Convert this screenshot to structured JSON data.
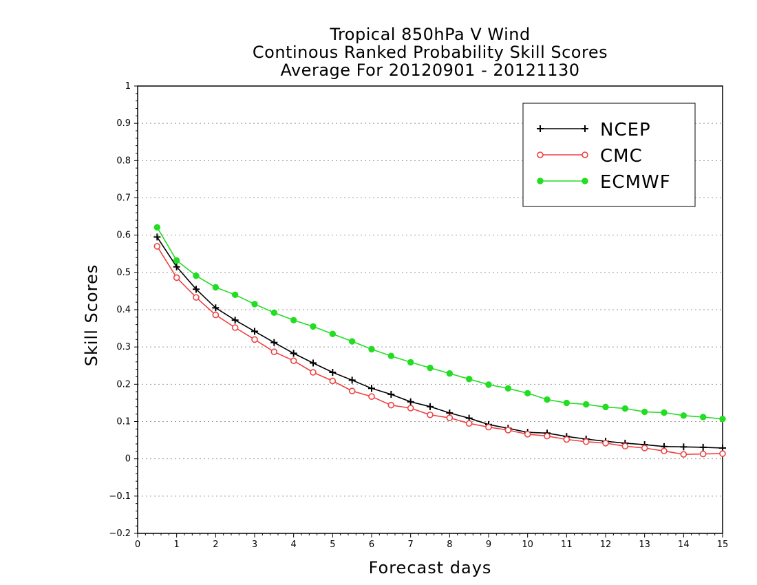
{
  "chart_data": {
    "type": "line",
    "title_lines": [
      "Tropical 850hPa V Wind",
      "Continous Ranked Probability Skill Scores",
      "Average For 20120901 - 20121130"
    ],
    "xlabel": "Forecast days",
    "ylabel": "Skill Scores",
    "xlim": [
      0,
      15
    ],
    "ylim": [
      -0.2,
      1
    ],
    "x_ticks": [
      "0",
      "1",
      "2",
      "3",
      "4",
      "5",
      "6",
      "7",
      "8",
      "9",
      "10",
      "11",
      "12",
      "13",
      "14",
      "15"
    ],
    "y_ticks": [
      "−0.2",
      "−0.1",
      "0",
      "0.1",
      "0.2",
      "0.3",
      "0.4",
      "0.5",
      "0.6",
      "0.7",
      "0.8",
      "0.9",
      "1"
    ],
    "grid": "horizontal dotted",
    "legend_position": "top-right",
    "x": [
      0.5,
      1.0,
      1.5,
      2.0,
      2.5,
      3.0,
      3.5,
      4.0,
      4.5,
      5.0,
      5.5,
      6.0,
      6.5,
      7.0,
      7.5,
      8.0,
      8.5,
      9.0,
      9.5,
      10.0,
      10.5,
      11.0,
      11.5,
      12.0,
      12.5,
      13.0,
      13.5,
      14.0,
      14.5,
      15.0
    ],
    "series": [
      {
        "name": "NCEP",
        "color": "#000000",
        "marker": "plus",
        "values": [
          0.595,
          0.515,
          0.455,
          0.405,
          0.372,
          0.342,
          0.312,
          0.283,
          0.257,
          0.232,
          0.211,
          0.189,
          0.173,
          0.153,
          0.14,
          0.123,
          0.109,
          0.092,
          0.082,
          0.071,
          0.069,
          0.06,
          0.053,
          0.047,
          0.042,
          0.038,
          0.033,
          0.032,
          0.031,
          0.029
        ]
      },
      {
        "name": "CMC",
        "color": "#f04040",
        "marker": "open-circle",
        "values": [
          0.57,
          0.486,
          0.433,
          0.386,
          0.352,
          0.32,
          0.287,
          0.263,
          0.232,
          0.209,
          0.182,
          0.167,
          0.144,
          0.136,
          0.118,
          0.11,
          0.095,
          0.085,
          0.077,
          0.066,
          0.061,
          0.052,
          0.046,
          0.042,
          0.034,
          0.029,
          0.021,
          0.012,
          0.013,
          0.014
        ]
      },
      {
        "name": "ECMWF",
        "color": "#22dd22",
        "marker": "filled-circle",
        "values": [
          0.621,
          0.532,
          0.491,
          0.46,
          0.44,
          0.415,
          0.392,
          0.372,
          0.355,
          0.335,
          0.315,
          0.294,
          0.276,
          0.259,
          0.244,
          0.229,
          0.214,
          0.199,
          0.189,
          0.176,
          0.159,
          0.15,
          0.146,
          0.139,
          0.135,
          0.126,
          0.124,
          0.116,
          0.112,
          0.107
        ]
      }
    ]
  }
}
